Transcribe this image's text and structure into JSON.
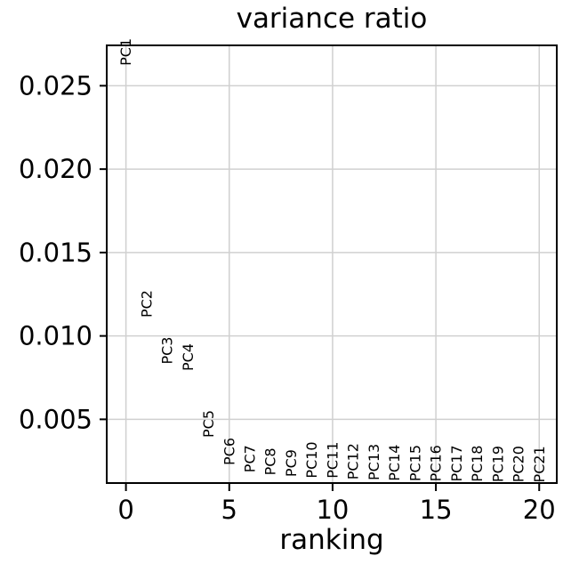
{
  "chart_data": {
    "type": "scatter",
    "title": "variance ratio",
    "xlabel": "ranking",
    "ylabel": "",
    "grid": true,
    "legend_position": "none",
    "marker_style": "text-label-rotated-90",
    "xlim": [
      -0.93,
      20.85
    ],
    "ylim": [
      0.00118,
      0.02742
    ],
    "xticks": [
      0,
      5,
      10,
      15,
      20
    ],
    "xtick_labels": [
      "0",
      "5",
      "10",
      "15",
      "20"
    ],
    "yticks": [
      0.005,
      0.01,
      0.015,
      0.02,
      0.025
    ],
    "ytick_labels": [
      "0.005",
      "0.010",
      "0.015",
      "0.020",
      "0.025"
    ],
    "points": [
      {
        "label": "PC1",
        "x": 0,
        "y": 0.0262
      },
      {
        "label": "PC2",
        "x": 1,
        "y": 0.0111
      },
      {
        "label": "PC3",
        "x": 2,
        "y": 0.0083
      },
      {
        "label": "PC4",
        "x": 3,
        "y": 0.0079
      },
      {
        "label": "PC5",
        "x": 4,
        "y": 0.0039
      },
      {
        "label": "PC6",
        "x": 5,
        "y": 0.00225
      },
      {
        "label": "PC7",
        "x": 6,
        "y": 0.00181
      },
      {
        "label": "PC8",
        "x": 7,
        "y": 0.00164
      },
      {
        "label": "PC9",
        "x": 8,
        "y": 0.00155
      },
      {
        "label": "PC10",
        "x": 9,
        "y": 0.00147
      },
      {
        "label": "PC11",
        "x": 10,
        "y": 0.00146
      },
      {
        "label": "PC12",
        "x": 11,
        "y": 0.00138
      },
      {
        "label": "PC13",
        "x": 12,
        "y": 0.00134
      },
      {
        "label": "PC14",
        "x": 13,
        "y": 0.0013
      },
      {
        "label": "PC15",
        "x": 14,
        "y": 0.00128
      },
      {
        "label": "PC16",
        "x": 15,
        "y": 0.00127
      },
      {
        "label": "PC17",
        "x": 16,
        "y": 0.00126
      },
      {
        "label": "PC18",
        "x": 17,
        "y": 0.00125
      },
      {
        "label": "PC19",
        "x": 18,
        "y": 0.00123
      },
      {
        "label": "PC20",
        "x": 19,
        "y": 0.00122
      },
      {
        "label": "PC21",
        "x": 20,
        "y": 0.00121
      }
    ],
    "colors": {
      "text": "#000000",
      "spine": "#000000",
      "tick": "#000000",
      "grid": "#d0d0d0",
      "background": "#ffffff"
    }
  }
}
